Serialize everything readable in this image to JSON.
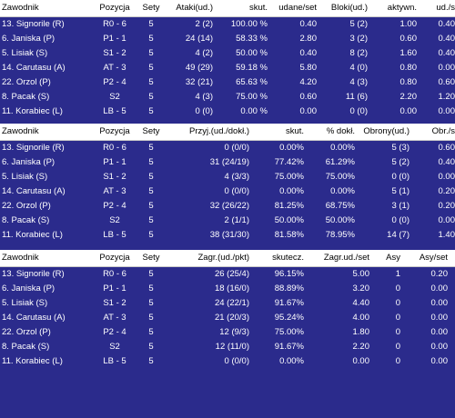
{
  "attack": {
    "headers": [
      "Zawodnik",
      "Pozycja",
      "Sety",
      "Ataki(ud.)",
      "skut.",
      "udane/set",
      "Bloki(ud.)",
      "aktywn.",
      "ud./s"
    ],
    "rows": [
      [
        "13. Signorile (R)",
        "R0 - 6",
        "5",
        "2 (2)",
        "100.00 %",
        "0.40",
        "5 (2)",
        "1.00",
        "0.40"
      ],
      [
        "6. Janiska (P)",
        "P1 - 1",
        "5",
        "24 (14)",
        "58.33 %",
        "2.80",
        "3 (2)",
        "0.60",
        "0.40"
      ],
      [
        "5. Lisiak (S)",
        "S1 - 2",
        "5",
        "4 (2)",
        "50.00 %",
        "0.40",
        "8 (2)",
        "1.60",
        "0.40"
      ],
      [
        "14. Carutasu (A)",
        "AT - 3",
        "5",
        "49 (29)",
        "59.18 %",
        "5.80",
        "4 (0)",
        "0.80",
        "0.00"
      ],
      [
        "22. Orzol (P)",
        "P2 - 4",
        "5",
        "32 (21)",
        "65.63 %",
        "4.20",
        "4 (3)",
        "0.80",
        "0.60"
      ],
      [
        "8. Pacak (S)",
        "S2",
        "5",
        "4 (3)",
        "75.00 %",
        "0.60",
        "11 (6)",
        "2.20",
        "1.20"
      ],
      [
        "11. Korabiec (L)",
        "LB - 5",
        "5",
        "0 (0)",
        "0.00 %",
        "0.00",
        "0 (0)",
        "0.00",
        "0.00"
      ]
    ]
  },
  "reception": {
    "headers": [
      "Zawodnik",
      "Pozycja",
      "Sety",
      "Przyj.(ud./dokł.)",
      "skut.",
      "% dokł.",
      "Obrony(ud.)",
      "Obr./s"
    ],
    "rows": [
      [
        "13. Signorile (R)",
        "R0 - 6",
        "5",
        "0 (0/0)",
        "0.00%",
        "0.00%",
        "5 (3)",
        "0.60"
      ],
      [
        "6. Janiska (P)",
        "P1 - 1",
        "5",
        "31 (24/19)",
        "77.42%",
        "61.29%",
        "5 (2)",
        "0.40"
      ],
      [
        "5. Lisiak (S)",
        "S1 - 2",
        "5",
        "4 (3/3)",
        "75.00%",
        "75.00%",
        "0 (0)",
        "0.00"
      ],
      [
        "14. Carutasu (A)",
        "AT - 3",
        "5",
        "0 (0/0)",
        "0.00%",
        "0.00%",
        "5 (1)",
        "0.20"
      ],
      [
        "22. Orzol (P)",
        "P2 - 4",
        "5",
        "32 (26/22)",
        "81.25%",
        "68.75%",
        "3 (1)",
        "0.20"
      ],
      [
        "8. Pacak (S)",
        "S2",
        "5",
        "2 (1/1)",
        "50.00%",
        "50.00%",
        "0 (0)",
        "0.00"
      ],
      [
        "11. Korabiec (L)",
        "LB - 5",
        "5",
        "38 (31/30)",
        "81.58%",
        "78.95%",
        "14 (7)",
        "1.40"
      ]
    ]
  },
  "serve": {
    "headers": [
      "Zawodnik",
      "Pozycja",
      "Sety",
      "Zagr.(ud./pkt)",
      "skutecz.",
      "Zagr.ud./set",
      "Asy",
      "Asy/set"
    ],
    "rows": [
      [
        "13. Signorile (R)",
        "R0 - 6",
        "5",
        "26 (25/4)",
        "96.15%",
        "5.00",
        "1",
        "0.20"
      ],
      [
        "6. Janiska (P)",
        "P1 - 1",
        "5",
        "18 (16/0)",
        "88.89%",
        "3.20",
        "0",
        "0.00"
      ],
      [
        "5. Lisiak (S)",
        "S1 - 2",
        "5",
        "24 (22/1)",
        "91.67%",
        "4.40",
        "0",
        "0.00"
      ],
      [
        "14. Carutasu (A)",
        "AT - 3",
        "5",
        "21 (20/3)",
        "95.24%",
        "4.00",
        "0",
        "0.00"
      ],
      [
        "22. Orzol (P)",
        "P2 - 4",
        "5",
        "12 (9/3)",
        "75.00%",
        "1.80",
        "0",
        "0.00"
      ],
      [
        "8. Pacak (S)",
        "S2",
        "5",
        "12 (11/0)",
        "91.67%",
        "2.20",
        "0",
        "0.00"
      ],
      [
        "11. Korabiec (L)",
        "LB - 5",
        "5",
        "0 (0/0)",
        "0.00%",
        "0.00",
        "0",
        "0.00"
      ]
    ]
  },
  "colors": {
    "background": "#2b2b8c",
    "header_bg": "#ffffff",
    "text": "#ffffff"
  }
}
